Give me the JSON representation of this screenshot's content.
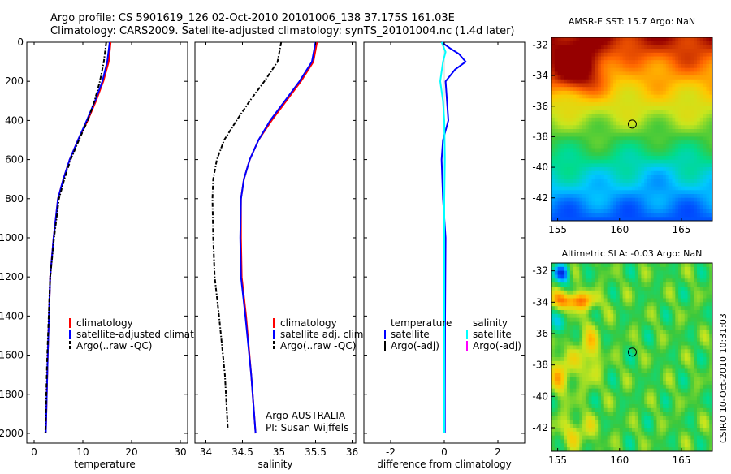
{
  "header": {
    "line1": "Argo profile: CS 5901619_126 02-Oct-2010 20101006_138 37.175S 161.03E",
    "line2": "Climatology: CARS2009. Satellite-adjusted climatology: synTS_20101004.nc (1.4d later)"
  },
  "colors": {
    "climatology": "#ff0000",
    "satellite": "#0000ff",
    "argo": "#000000",
    "salinity_satellite": "#00ffff",
    "salinity_argo": "#ff00ff"
  },
  "chart_data": [
    {
      "type": "line",
      "panel": "temperature",
      "xlabel": "temperature",
      "ylabel": "",
      "xlim": [
        -1.5,
        31.5
      ],
      "ylim": [
        2050,
        0
      ],
      "xticks": [
        0,
        10,
        20,
        30
      ],
      "yticks": [
        0,
        200,
        400,
        600,
        800,
        1000,
        1200,
        1400,
        1600,
        1800,
        2000
      ],
      "legend": [
        "climatology",
        "satellite-adjusted climatology",
        "Argo(..raw -QC)"
      ],
      "series": [
        {
          "name": "climatology",
          "color": "#ff0000",
          "style": "solid",
          "x": [
            15.7,
            15.3,
            14.2,
            12.7,
            11.0,
            9.0,
            7.3,
            6.0,
            4.9,
            4.0,
            3.3,
            2.8,
            2.4
          ],
          "y": [
            0,
            100,
            200,
            300,
            400,
            500,
            600,
            700,
            800,
            1000,
            1200,
            1600,
            2000
          ]
        },
        {
          "name": "satellite-adjusted climatology",
          "color": "#0000ff",
          "style": "solid",
          "x": [
            15.5,
            15.0,
            14.0,
            12.5,
            10.8,
            9.0,
            7.3,
            6.0,
            4.9,
            4.0,
            3.3,
            2.8,
            2.4
          ],
          "y": [
            0,
            100,
            200,
            300,
            400,
            500,
            600,
            700,
            800,
            1000,
            1200,
            1600,
            2000
          ]
        },
        {
          "name": "Argo(..raw -QC)",
          "color": "#000000",
          "style": "dashdot",
          "x": [
            14.8,
            14.3,
            13.5,
            12.4,
            11.0,
            9.2,
            7.5,
            6.2,
            5.1,
            4.1,
            3.3,
            2.7,
            2.3
          ],
          "y": [
            0,
            100,
            200,
            300,
            400,
            500,
            600,
            700,
            800,
            1000,
            1200,
            1600,
            2000
          ]
        }
      ]
    },
    {
      "type": "line",
      "panel": "salinity",
      "xlabel": "salinity",
      "ylabel": "",
      "xlim": [
        33.85,
        36.05
      ],
      "ylim": [
        2050,
        0
      ],
      "xticks": [
        34,
        34.5,
        35,
        35.5,
        36
      ],
      "xticklabels": [
        "34",
        "34.5",
        "35",
        "35.5",
        "36"
      ],
      "legend": [
        "climatology",
        "satellite adj. clim.",
        "Argo(..raw -QC)"
      ],
      "annotation": [
        "Argo AUSTRALIA",
        "PI: Susan Wijffels"
      ],
      "series": [
        {
          "name": "climatology",
          "color": "#ff0000",
          "style": "solid",
          "x": [
            35.52,
            35.47,
            35.3,
            35.1,
            34.9,
            34.72,
            34.6,
            34.52,
            34.48,
            34.48,
            34.49,
            34.55,
            34.62,
            34.68
          ],
          "y": [
            0,
            100,
            200,
            300,
            400,
            500,
            600,
            700,
            800,
            1000,
            1200,
            1400,
            1700,
            2000
          ]
        },
        {
          "name": "satellite adj. clim.",
          "color": "#0000ff",
          "style": "solid",
          "x": [
            35.5,
            35.45,
            35.28,
            35.08,
            34.88,
            34.72,
            34.6,
            34.52,
            34.48,
            34.47,
            34.48,
            34.54,
            34.62,
            34.68
          ],
          "y": [
            0,
            100,
            200,
            300,
            400,
            500,
            600,
            700,
            800,
            1000,
            1200,
            1400,
            1700,
            2000
          ]
        },
        {
          "name": "Argo(..raw -QC)",
          "color": "#000000",
          "style": "dashdot",
          "x": [
            35.03,
            34.98,
            34.8,
            34.6,
            34.42,
            34.25,
            34.15,
            34.1,
            34.09,
            34.1,
            34.12,
            34.18,
            34.26,
            34.3
          ],
          "y": [
            0,
            100,
            200,
            300,
            400,
            500,
            600,
            700,
            800,
            1000,
            1200,
            1400,
            1700,
            1980
          ]
        }
      ]
    },
    {
      "type": "line",
      "panel": "difference",
      "xlabel": "difference from climatology",
      "ylabel": "",
      "xlim": [
        -3,
        3
      ],
      "ylim": [
        2050,
        0
      ],
      "xticks": [
        -2,
        0,
        2
      ],
      "legend_headers": [
        "temperature",
        "salinity"
      ],
      "legend": [
        "satellite",
        "Argo(-adj)",
        "satellite",
        "Argo(-adj)"
      ],
      "series": [
        {
          "name": "satellite",
          "variable": "temperature",
          "color": "#0000ff",
          "style": "solid",
          "x": [
            -0.1,
            0.2,
            0.55,
            0.8,
            0.4,
            0.05,
            0.1,
            0.15,
            -0.05,
            -0.1,
            -0.05,
            0.05,
            0.03,
            0.02,
            0.02
          ],
          "y": [
            0,
            30,
            60,
            100,
            140,
            200,
            300,
            400,
            500,
            600,
            800,
            1000,
            1400,
            1800,
            2000
          ]
        },
        {
          "name": "satellite",
          "variable": "salinity",
          "color": "#00ffff",
          "style": "solid",
          "x": [
            -0.1,
            0.05,
            -0.05,
            -0.15,
            -0.05,
            0.0,
            0.02,
            0.0,
            0.0,
            0.0,
            0.0
          ],
          "y": [
            0,
            50,
            100,
            200,
            300,
            400,
            600,
            800,
            1200,
            1600,
            2000
          ]
        }
      ]
    },
    {
      "type": "heatmap",
      "title": "AMSR-E SST: 15.7 Argo: NaN",
      "xlim": [
        154.5,
        167.5
      ],
      "ylim": [
        -43.5,
        -31.5
      ],
      "xticks": [
        155,
        160,
        165
      ],
      "yticks": [
        -32,
        -34,
        -36,
        -38,
        -40,
        -42
      ],
      "marker": {
        "lon": 161.03,
        "lat": -37.175
      }
    },
    {
      "type": "heatmap",
      "title": "Altimetric SLA: -0.03 Argo: NaN",
      "xlim": [
        154.5,
        167.5
      ],
      "ylim": [
        -43.5,
        -31.5
      ],
      "xticks": [
        155,
        160,
        165
      ],
      "yticks": [
        -32,
        -34,
        -36,
        -38,
        -40,
        -42
      ],
      "marker": {
        "lon": 161.03,
        "lat": -37.175
      }
    }
  ],
  "footer": {
    "stamp": "CSIRO 10-Oct-2010 10:31:03"
  }
}
